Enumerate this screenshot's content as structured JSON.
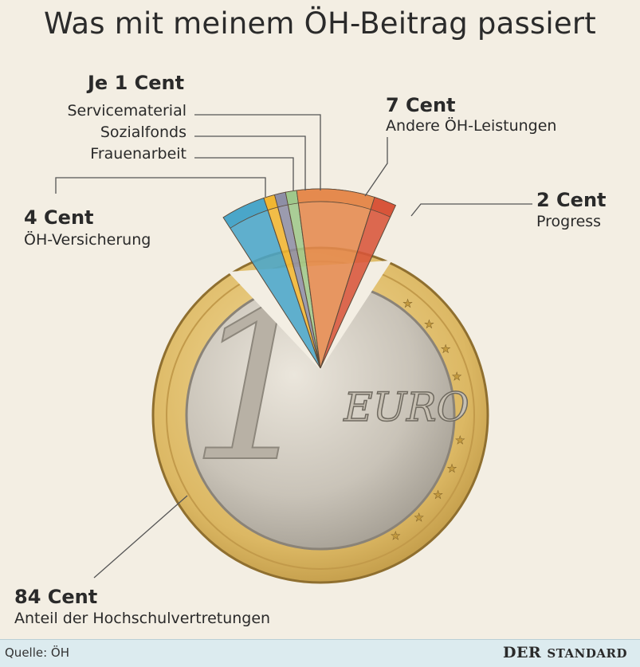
{
  "title": "Was mit meinem ÖH-Beitrag passiert",
  "coin": {
    "numeral": "1",
    "currency": "EURO"
  },
  "chart_data": {
    "type": "pie",
    "title": "Was mit meinem ÖH-Beitrag passiert",
    "unit": "Cent",
    "total": 100,
    "slices": [
      {
        "label": "Anteil der Hochschulvertretungen",
        "value": 84,
        "value_label": "84 Cent",
        "color": "#d9b86a"
      },
      {
        "label": "ÖH-Versicherung",
        "value": 4,
        "value_label": "4 Cent",
        "color": "#4aa6c9"
      },
      {
        "label": "Frauenarbeit",
        "value": 1,
        "value_label": "",
        "color": "#f1b632"
      },
      {
        "label": "Sozialfonds",
        "value": 1,
        "value_label": "",
        "color": "#8e8fa6"
      },
      {
        "label": "Servicematerial",
        "value": 1,
        "value_label": "",
        "color": "#9fc88b"
      },
      {
        "label": "Andere ÖH-Leistungen",
        "value": 7,
        "value_label": "7 Cent",
        "color": "#e58a4e"
      },
      {
        "label": "Progress",
        "value": 2,
        "value_label": "2 Cent",
        "color": "#d8553a"
      }
    ],
    "group_label": "Je 1 Cent",
    "group_members": [
      "Servicematerial",
      "Sozialfonds",
      "Frauenarbeit"
    ]
  },
  "footer": {
    "source": "Quelle: ÖH",
    "brand_first": "DER",
    "brand_second": "STANDARD"
  }
}
